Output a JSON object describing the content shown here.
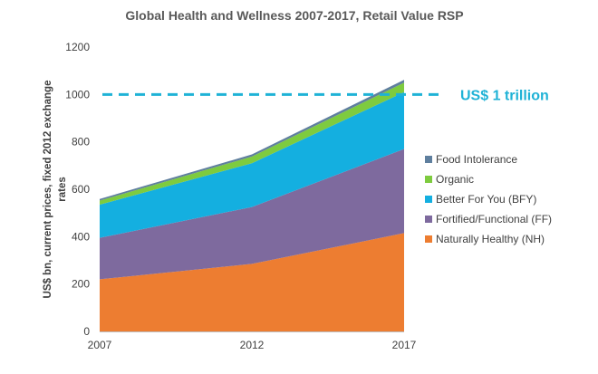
{
  "chart_data": {
    "type": "area",
    "stacked": true,
    "title": "Global Health and Wellness 2007-2017, Retail Value RSP",
    "ylabel_lines": [
      "US$ bn, current prices, fixed 2012 exchange",
      "rates"
    ],
    "x": [
      "2007",
      "2012",
      "2017"
    ],
    "ylim": [
      0,
      1200
    ],
    "yticks": [
      "0",
      "200",
      "400",
      "600",
      "800",
      "1000",
      "1200"
    ],
    "grid": false,
    "legend_position": "right",
    "series": [
      {
        "name": "Naturally Healthy (NH)",
        "color": "#ed7d31",
        "values": [
          220,
          285,
          415
        ]
      },
      {
        "name": "Fortified/Functional (FF)",
        "color": "#7e6a9e",
        "values": [
          175,
          240,
          355
        ]
      },
      {
        "name": "Better For You (BFY)",
        "color": "#14afe0",
        "values": [
          140,
          185,
          240
        ]
      },
      {
        "name": "Organic",
        "color": "#7ecb3f",
        "values": [
          17,
          28,
          40
        ]
      },
      {
        "name": "Food Intolerance",
        "color": "#5f7f9e",
        "values": [
          7,
          9,
          12
        ]
      }
    ],
    "legend_order": [
      "Food Intolerance",
      "Organic",
      "Better For You (BFY)",
      "Fortified/Functional (FF)",
      "Naturally Healthy (NH)"
    ],
    "reference_line": {
      "value": 1000,
      "label": "US$ 1 trillion",
      "color": "#1fb2d6"
    }
  }
}
